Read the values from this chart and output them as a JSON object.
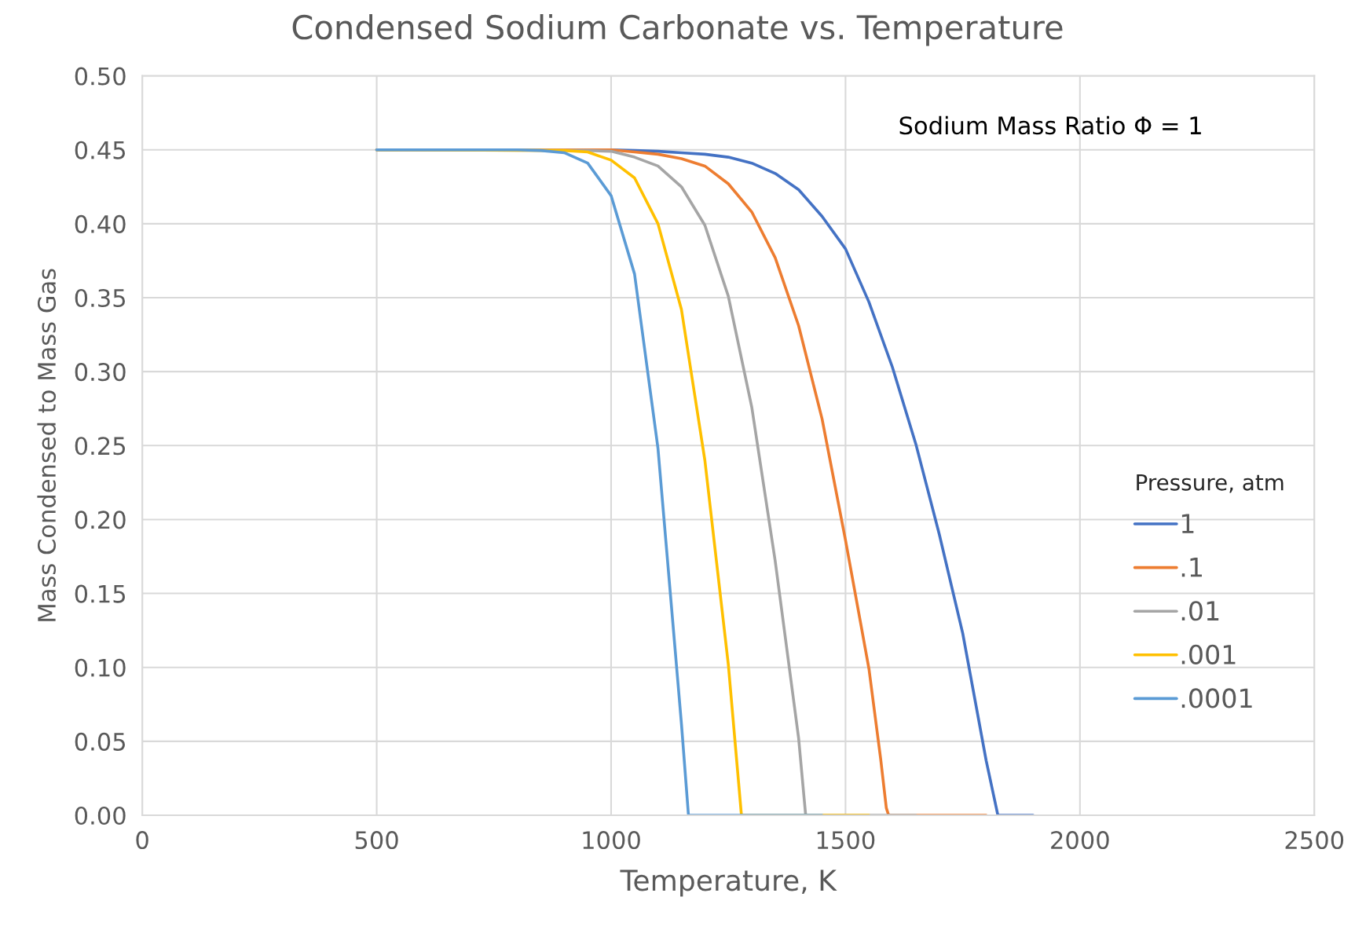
{
  "chart_data": {
    "type": "line",
    "title": "Condensed Sodium Carbonate vs. Temperature",
    "xlabel": "Temperature, K",
    "ylabel": "Mass Condensed to Mass Gas",
    "legend_title": "Pressure, atm",
    "annotations": [
      "Sodium Mass Ratio Φ = 1"
    ],
    "xlim": [
      0,
      2500
    ],
    "xticks": [
      0,
      500,
      1000,
      1500,
      2000,
      2500
    ],
    "ylim": [
      0,
      0.5
    ],
    "yticks": [
      {
        "value": 0,
        "label": "0.00"
      },
      {
        "value": 0.05,
        "label": "0.05"
      },
      {
        "value": 0.1,
        "label": "0.10"
      },
      {
        "value": 0.15,
        "label": "0.15"
      },
      {
        "value": 0.2,
        "label": "0.20"
      },
      {
        "value": 0.25,
        "label": "0.25"
      },
      {
        "value": 0.3,
        "label": "0.30"
      },
      {
        "value": 0.35,
        "label": "0.35"
      },
      {
        "value": 0.4,
        "label": "0.40"
      },
      {
        "value": 0.45,
        "label": "0.45"
      },
      {
        "value": 0.5,
        "label": "0.50"
      }
    ],
    "grid": true,
    "legend": "right",
    "marker": "none",
    "line_style": "solid",
    "series": [
      {
        "name": "1",
        "color": "#4472c4",
        "x": [
          500,
          1000,
          1050,
          1100,
          1150,
          1200,
          1250,
          1300,
          1350,
          1400,
          1450,
          1500,
          1550,
          1600,
          1650,
          1700,
          1750,
          1800,
          1825,
          1900
        ],
        "values": [
          0.45,
          0.45,
          0.4495,
          0.449,
          0.448,
          0.447,
          0.445,
          0.441,
          0.434,
          0.423,
          0.405,
          0.383,
          0.347,
          0.303,
          0.251,
          0.19,
          0.123,
          0.037,
          0,
          0
        ]
      },
      {
        "name": ".1",
        "color": "#ed7d31",
        "x": [
          500,
          1000,
          1050,
          1100,
          1150,
          1200,
          1250,
          1300,
          1350,
          1400,
          1450,
          1500,
          1550,
          1575,
          1587,
          1592,
          1800
        ],
        "values": [
          0.45,
          0.45,
          0.4485,
          0.447,
          0.444,
          0.439,
          0.427,
          0.408,
          0.377,
          0.331,
          0.268,
          0.186,
          0.099,
          0.038,
          0.005,
          0,
          0
        ]
      },
      {
        "name": ".01",
        "color": "#a5a5a5",
        "x": [
          500,
          950,
          1000,
          1050,
          1100,
          1150,
          1200,
          1250,
          1300,
          1350,
          1400,
          1415,
          1650
        ],
        "values": [
          0.45,
          0.4495,
          0.449,
          0.445,
          0.439,
          0.425,
          0.399,
          0.351,
          0.276,
          0.172,
          0.052,
          0,
          0
        ]
      },
      {
        "name": ".001",
        "color": "#ffc000",
        "x": [
          500,
          900,
          950,
          1000,
          1050,
          1100,
          1150,
          1200,
          1250,
          1278,
          1550
        ],
        "values": [
          0.45,
          0.4495,
          0.4485,
          0.443,
          0.431,
          0.4,
          0.342,
          0.24,
          0.102,
          0,
          0
        ]
      },
      {
        "name": ".0001",
        "color": "#5b9bd5",
        "x": [
          500,
          800,
          850,
          900,
          950,
          1000,
          1050,
          1100,
          1150,
          1165,
          1450
        ],
        "values": [
          0.45,
          0.45,
          0.4495,
          0.448,
          0.441,
          0.419,
          0.366,
          0.248,
          0.062,
          0,
          0
        ]
      }
    ]
  }
}
